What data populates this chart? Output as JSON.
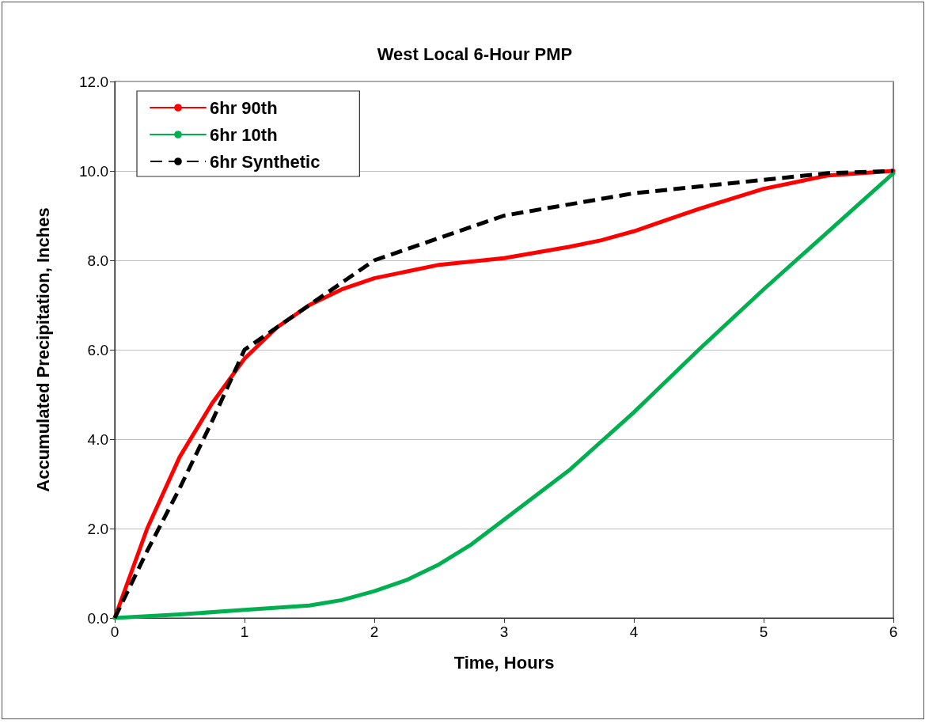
{
  "chart_data": {
    "type": "line",
    "title": "West Local 6-Hour PMP",
    "xlabel": "Time, Hours",
    "ylabel": "Accumulated Precipitation, Inches",
    "xlim": [
      0,
      6
    ],
    "xticks": [
      0,
      1,
      2,
      3,
      4,
      5,
      6
    ],
    "ylim": [
      0,
      12
    ],
    "yticks": [
      {
        "value": 0,
        "label": "0.0"
      },
      {
        "value": 2,
        "label": "2.0"
      },
      {
        "value": 4,
        "label": "4.0"
      },
      {
        "value": 6,
        "label": "6.0"
      },
      {
        "value": 8,
        "label": "8.0"
      },
      {
        "value": 10,
        "label": "10.0"
      },
      {
        "value": 12,
        "label": "12.0"
      }
    ],
    "grid": "y",
    "legend": "top left",
    "marker": "none",
    "series": [
      {
        "name": "6hr 90th",
        "color": "#ff0000",
        "line_style": "solid",
        "x": [
          0,
          0.25,
          0.5,
          0.75,
          1,
          1.25,
          1.5,
          1.75,
          2,
          2.5,
          3,
          3.5,
          3.75,
          4,
          4.25,
          4.5,
          5,
          5.5,
          6
        ],
        "values": [
          0,
          2.0,
          3.6,
          4.8,
          5.8,
          6.5,
          7.0,
          7.35,
          7.6,
          7.9,
          8.05,
          8.3,
          8.45,
          8.65,
          8.9,
          9.15,
          9.6,
          9.9,
          10.0
        ]
      },
      {
        "name": "6hr 10th",
        "color": "#00b050",
        "line_style": "solid",
        "x": [
          0,
          0.5,
          1,
          1.5,
          1.75,
          2,
          2.25,
          2.5,
          2.75,
          3,
          3.5,
          4,
          4.5,
          5,
          5.5,
          6
        ],
        "values": [
          0,
          0.08,
          0.18,
          0.28,
          0.4,
          0.6,
          0.85,
          1.2,
          1.65,
          2.2,
          3.3,
          4.6,
          6.0,
          7.35,
          8.65,
          9.95
        ]
      },
      {
        "name": "6hr Synthetic",
        "color": "#000000",
        "line_style": "dashed",
        "x": [
          0,
          0.25,
          0.5,
          0.75,
          1,
          1.5,
          2,
          2.5,
          3,
          3.5,
          4,
          4.5,
          5,
          5.5,
          6
        ],
        "values": [
          0,
          1.5,
          2.9,
          4.4,
          6.0,
          7.0,
          8.0,
          8.5,
          9.0,
          9.25,
          9.5,
          9.65,
          9.8,
          9.95,
          10.0
        ]
      }
    ]
  }
}
